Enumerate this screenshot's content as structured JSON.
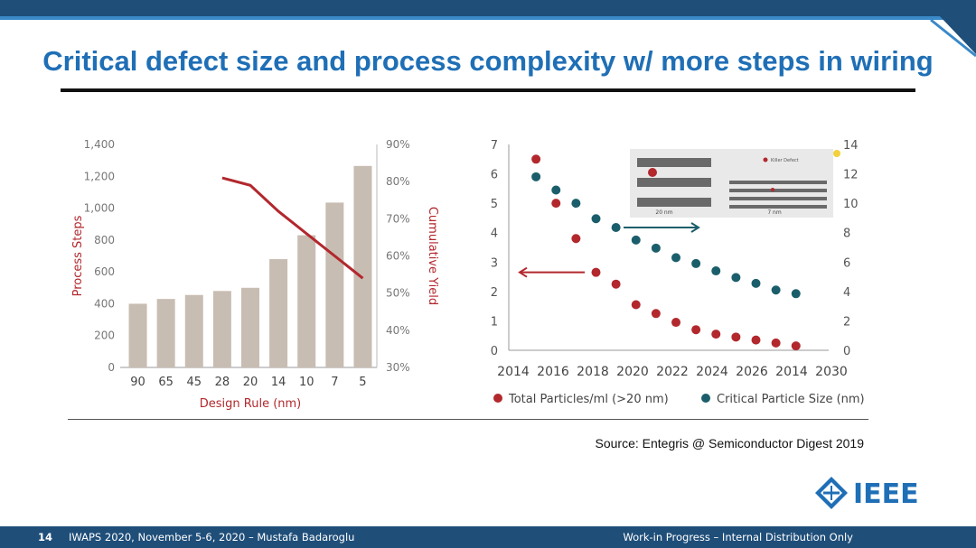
{
  "slide": {
    "title": "Critical defect size and process complexity w/ more steps in wiring",
    "source": "Source: Entegris @ Semiconductor Digest 2019",
    "footer": {
      "slide_number": "14",
      "left": "IWAPS 2020, November 5-6, 2020 – Mustafa Badaroglu",
      "right": "Work-in Progress – Internal Distribution Only"
    },
    "logo_text": "IEEE",
    "colors": {
      "title": "#1f6fb6",
      "header_bar": "#1f4e79",
      "bar": "#c8bdb2",
      "red_series": "#b2282d",
      "teal_series": "#1b5e6b"
    }
  },
  "chart_data": [
    {
      "type": "bar",
      "xlabel": "Design Rule (nm)",
      "ylabel": "Process Steps",
      "y2label": "Cumulative Yield",
      "categories": [
        "90",
        "65",
        "45",
        "28",
        "20",
        "14",
        "10",
        "7",
        "5"
      ],
      "ylim": [
        0,
        1400
      ],
      "yticks": [
        "0",
        "200",
        "400",
        "600",
        "800",
        "1,000",
        "1,200",
        "1,400"
      ],
      "y2lim": [
        30,
        90
      ],
      "y2ticks": [
        "30%",
        "40%",
        "50%",
        "60%",
        "70%",
        "80%",
        "90%"
      ],
      "series": [
        {
          "values": [
            400,
            430,
            455,
            480,
            500,
            680,
            830,
            1035,
            1265
          ]
        }
      ],
      "line": {
        "categories": [
          "28",
          "20",
          "14",
          "10",
          "5"
        ],
        "values": [
          81,
          79,
          72,
          66,
          54
        ]
      }
    },
    {
      "type": "scatter",
      "xticks": [
        "2014",
        "2016",
        "2018",
        "2020",
        "2022",
        "2024",
        "2026",
        "2014",
        "2030"
      ],
      "ylim": [
        0,
        7
      ],
      "yticks": [
        "0",
        "1",
        "2",
        "3",
        "4",
        "5",
        "6",
        "7"
      ],
      "y2lim": [
        0,
        14
      ],
      "y2ticks": [
        "0",
        "2",
        "4",
        "6",
        "8",
        "10",
        "12",
        "14"
      ],
      "series": [
        {
          "name": "Total Particles/ml (>20 nm)",
          "axis": "left",
          "x": [
            2014,
            2015,
            2016,
            2017,
            2018,
            2019,
            2020,
            2021,
            2022,
            2023,
            2024,
            2025,
            2026,
            2027
          ],
          "y": [
            6.5,
            5.0,
            3.8,
            2.65,
            2.25,
            1.55,
            1.25,
            0.95,
            0.7,
            0.55,
            0.45,
            0.35,
            0.25,
            0.15
          ]
        },
        {
          "name": "Critical Particle Size (nm)",
          "axis": "right",
          "x": [
            2014,
            2015,
            2016,
            2017,
            2018,
            2019,
            2020,
            2021,
            2022,
            2023,
            2024,
            2025,
            2026,
            2027
          ],
          "y": [
            11.8,
            10.9,
            10.0,
            8.95,
            8.35,
            7.5,
            6.95,
            6.3,
            5.9,
            5.4,
            4.95,
            4.55,
            4.1,
            3.85
          ]
        }
      ],
      "inset": {
        "label_left": "20 nm",
        "label_right": "7 nm",
        "legend": "Killer Defect"
      }
    }
  ]
}
